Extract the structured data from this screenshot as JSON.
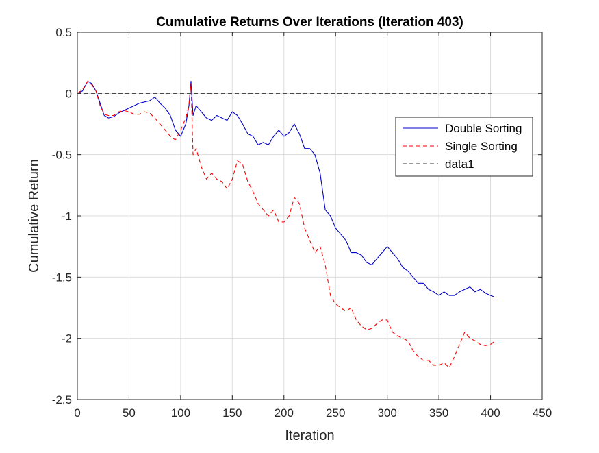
{
  "chart_data": {
    "type": "line",
    "title": "Cumulative Returns Over Iterations (Iteration 403)",
    "xlabel": "Iteration",
    "ylabel": "Cumulative Return",
    "xlim": [
      0,
      450
    ],
    "ylim": [
      -2.5,
      0.5
    ],
    "xticks": [
      0,
      50,
      100,
      150,
      200,
      250,
      300,
      350,
      400,
      450
    ],
    "yticks": [
      0.5,
      0,
      -0.5,
      -1,
      -1.5,
      -2,
      -2.5
    ],
    "xtick_labels": [
      "0",
      "50",
      "100",
      "150",
      "200",
      "250",
      "300",
      "350",
      "400",
      "450"
    ],
    "ytick_labels": [
      "0.5",
      "0",
      "-0.5",
      "-1",
      "-1.5",
      "-2",
      "-2.5"
    ],
    "grid": true,
    "legend_position": "upper-right",
    "series": [
      {
        "name": "Double Sorting",
        "color": "#0000cc",
        "style": "solid",
        "x": [
          0,
          5,
          10,
          14,
          18,
          22,
          26,
          30,
          35,
          40,
          45,
          50,
          55,
          60,
          65,
          70,
          75,
          80,
          85,
          90,
          95,
          100,
          105,
          108,
          110,
          112,
          115,
          120,
          125,
          130,
          135,
          140,
          145,
          150,
          155,
          160,
          165,
          170,
          175,
          180,
          185,
          190,
          195,
          200,
          205,
          210,
          215,
          220,
          225,
          230,
          235,
          240,
          245,
          250,
          255,
          260,
          265,
          270,
          275,
          280,
          285,
          290,
          295,
          300,
          305,
          310,
          315,
          320,
          325,
          330,
          335,
          340,
          345,
          350,
          355,
          360,
          365,
          370,
          375,
          380,
          385,
          390,
          395,
          400,
          403
        ],
        "y": [
          0,
          0.02,
          0.1,
          0.08,
          0.02,
          -0.08,
          -0.18,
          -0.2,
          -0.19,
          -0.16,
          -0.14,
          -0.12,
          -0.1,
          -0.08,
          -0.07,
          -0.06,
          -0.03,
          -0.08,
          -0.12,
          -0.18,
          -0.3,
          -0.35,
          -0.25,
          -0.1,
          0.1,
          -0.18,
          -0.1,
          -0.15,
          -0.2,
          -0.22,
          -0.18,
          -0.2,
          -0.22,
          -0.15,
          -0.18,
          -0.25,
          -0.33,
          -0.35,
          -0.42,
          -0.4,
          -0.42,
          -0.35,
          -0.3,
          -0.35,
          -0.32,
          -0.25,
          -0.33,
          -0.45,
          -0.45,
          -0.5,
          -0.65,
          -0.95,
          -1.0,
          -1.1,
          -1.15,
          -1.2,
          -1.3,
          -1.3,
          -1.32,
          -1.38,
          -1.4,
          -1.35,
          -1.3,
          -1.25,
          -1.3,
          -1.35,
          -1.42,
          -1.45,
          -1.5,
          -1.55,
          -1.55,
          -1.6,
          -1.62,
          -1.65,
          -1.62,
          -1.65,
          -1.65,
          -1.62,
          -1.6,
          -1.58,
          -1.62,
          -1.6,
          -1.63,
          -1.65,
          -1.66
        ]
      },
      {
        "name": "Single Sorting",
        "color": "#ff0000",
        "style": "dashed",
        "x": [
          0,
          5,
          10,
          14,
          18,
          22,
          26,
          30,
          35,
          40,
          45,
          50,
          55,
          60,
          65,
          70,
          75,
          80,
          85,
          90,
          95,
          100,
          105,
          108,
          110,
          112,
          115,
          120,
          125,
          130,
          135,
          140,
          145,
          150,
          155,
          160,
          165,
          170,
          175,
          180,
          185,
          190,
          195,
          200,
          205,
          210,
          215,
          220,
          225,
          230,
          235,
          240,
          245,
          250,
          255,
          260,
          265,
          270,
          275,
          280,
          285,
          290,
          295,
          300,
          305,
          310,
          315,
          320,
          325,
          330,
          335,
          340,
          345,
          350,
          355,
          360,
          365,
          370,
          375,
          380,
          385,
          390,
          395,
          400,
          403
        ],
        "y": [
          0,
          0.03,
          0.1,
          0.07,
          0.02,
          -0.1,
          -0.17,
          -0.18,
          -0.18,
          -0.15,
          -0.14,
          -0.15,
          -0.17,
          -0.17,
          -0.15,
          -0.16,
          -0.2,
          -0.25,
          -0.3,
          -0.35,
          -0.38,
          -0.3,
          -0.2,
          -0.1,
          0.08,
          -0.5,
          -0.45,
          -0.6,
          -0.7,
          -0.65,
          -0.7,
          -0.72,
          -0.78,
          -0.7,
          -0.55,
          -0.58,
          -0.72,
          -0.8,
          -0.9,
          -0.95,
          -1.0,
          -0.95,
          -1.05,
          -1.05,
          -1.0,
          -0.85,
          -0.9,
          -1.1,
          -1.2,
          -1.3,
          -1.25,
          -1.4,
          -1.65,
          -1.72,
          -1.75,
          -1.78,
          -1.75,
          -1.85,
          -1.9,
          -1.93,
          -1.92,
          -1.88,
          -1.85,
          -1.85,
          -1.95,
          -1.98,
          -2.0,
          -2.02,
          -2.1,
          -2.15,
          -2.18,
          -2.18,
          -2.22,
          -2.22,
          -2.2,
          -2.24,
          -2.15,
          -2.05,
          -1.95,
          -2.0,
          -2.02,
          -2.05,
          -2.06,
          -2.05,
          -2.03
        ]
      },
      {
        "name": "data1",
        "color": "#333333",
        "style": "dashed",
        "x": [
          0,
          403
        ],
        "y": [
          0,
          0
        ]
      }
    ]
  }
}
